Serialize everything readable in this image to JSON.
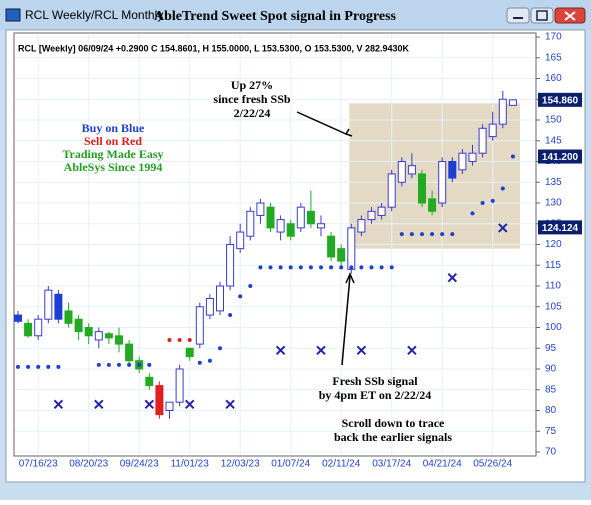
{
  "window": {
    "title": "RCL Weekly/RCL Monthly"
  },
  "chart_data": {
    "type": "candlestick",
    "title": "AbleTrend Sweet Spot signal in Progress",
    "header": "RCL [Weekly] 06/09/24 +0.2900 C 154.8601, H 155.0000, L 153.5300, O 153.5300, V 282.9430K",
    "categories": [
      null,
      null,
      "07/16/23",
      null,
      null,
      null,
      null,
      "08/20/23",
      null,
      null,
      null,
      null,
      "09/24/23",
      null,
      null,
      null,
      null,
      "11/01/23",
      null,
      null,
      null,
      null,
      "12/03/23",
      null,
      null,
      null,
      null,
      "01/07/24",
      null,
      null,
      null,
      null,
      "02/11/24",
      null,
      null,
      null,
      null,
      "03/17/24",
      null,
      null,
      null,
      null,
      "04/21/24",
      null,
      null,
      null,
      null,
      "05/26/24",
      null,
      null
    ],
    "open": [
      101.5,
      101,
      98,
      102,
      108,
      104,
      102,
      100,
      97,
      98.5,
      98,
      96,
      92,
      88,
      86,
      80,
      82,
      93,
      96,
      103,
      104,
      110,
      119,
      122,
      127,
      129,
      123,
      125,
      124,
      128,
      124,
      122,
      119,
      114,
      123,
      126,
      127,
      129,
      135,
      137,
      137,
      131,
      130,
      140,
      138,
      140,
      142,
      146,
      149,
      153.53
    ],
    "high": [
      104,
      102,
      103,
      110,
      109,
      106,
      103,
      101,
      100,
      99,
      100,
      97,
      93,
      89,
      87,
      82,
      91,
      95,
      106,
      108,
      111,
      122,
      125,
      129,
      131,
      130,
      127,
      126,
      130,
      133,
      127,
      123,
      120,
      125,
      127,
      129,
      130,
      138,
      141,
      142,
      138,
      133,
      141,
      141,
      143,
      144,
      149,
      152,
      157,
      155
    ],
    "low": [
      101,
      97.5,
      97,
      101,
      101,
      100,
      97,
      96,
      95,
      96,
      94,
      91,
      89,
      85,
      78,
      78,
      81,
      92,
      95,
      102,
      103,
      109,
      118,
      121,
      125,
      123,
      121,
      121,
      123,
      124,
      122,
      116,
      114,
      113,
      122,
      125,
      126,
      128,
      134,
      136,
      129,
      127,
      129,
      135,
      137,
      139,
      141,
      145,
      148,
      153.53
    ],
    "close": [
      103,
      98,
      102,
      109,
      102,
      101,
      99,
      98,
      99,
      97.5,
      96,
      92,
      90,
      86,
      79,
      82,
      90,
      95,
      105,
      107,
      110,
      120,
      123,
      128,
      130,
      124,
      126,
      122,
      129,
      125,
      125,
      117,
      116,
      124,
      126,
      128,
      129,
      137,
      140,
      139,
      130,
      128,
      140,
      136,
      142,
      142,
      148,
      149,
      155,
      154.86
    ],
    "colors": [
      "#1f3fcf",
      "#22aa22",
      "#ffffff",
      "#ffffff",
      "#1f3fcf",
      "#22aa22",
      "#22aa22",
      "#22aa22",
      "#ffffff",
      "#22aa22",
      "#22aa22",
      "#22aa22",
      "#22aa22",
      "#22aa22",
      "#e02020",
      "#ffffff",
      "#ffffff",
      "#22aa22",
      "#ffffff",
      "#ffffff",
      "#ffffff",
      "#ffffff",
      "#ffffff",
      "#ffffff",
      "#ffffff",
      "#22aa22",
      "#ffffff",
      "#22aa22",
      "#ffffff",
      "#22aa22",
      "#ffffff",
      "#22aa22",
      "#22aa22",
      "#ffffff",
      "#ffffff",
      "#ffffff",
      "#ffffff",
      "#ffffff",
      "#ffffff",
      "#ffffff",
      "#22aa22",
      "#22aa22",
      "#ffffff",
      "#1f3fcf",
      "#ffffff",
      "#ffffff",
      "#ffffff",
      "#ffffff",
      "#ffffff",
      "#ffffff"
    ],
    "stop_dots": {
      "color": "#1f3fcf",
      "x": [
        0,
        1,
        2,
        3,
        4,
        8,
        9,
        10,
        11,
        12,
        13,
        18,
        19,
        20,
        21,
        22,
        23,
        24,
        25,
        26,
        27,
        28,
        29,
        30,
        31,
        32,
        33,
        34,
        35,
        36,
        37,
        38,
        39,
        40,
        41,
        42,
        43,
        45,
        46,
        47,
        48,
        49
      ],
      "values": [
        90.5,
        90.5,
        90.5,
        90.5,
        90.5,
        91,
        91,
        91,
        91,
        91,
        91,
        91.5,
        92,
        95,
        103,
        107.5,
        110,
        114.5,
        114.5,
        114.5,
        114.5,
        114.5,
        114.5,
        114.5,
        114.5,
        114.5,
        114.5,
        114.5,
        114.5,
        114.5,
        114.5,
        122.5,
        122.5,
        122.5,
        122.5,
        122.5,
        122.5,
        127.5,
        130,
        130.5,
        133.5,
        141.2
      ]
    },
    "red_dots": {
      "color": "#e02020",
      "x": [
        15,
        16,
        17
      ],
      "values": [
        97,
        97,
        97
      ]
    },
    "x_marks": {
      "color": "#2222aa",
      "x": [
        4,
        8,
        13,
        17,
        21,
        26,
        30,
        34,
        39,
        43,
        48
      ],
      "values": [
        81.5,
        81.5,
        81.5,
        81.5,
        81.5,
        94.5,
        94.5,
        94.5,
        94.5,
        112,
        124
      ]
    },
    "ylim": [
      70,
      170
    ],
    "yticks": [
      70,
      75,
      80,
      85,
      90,
      95,
      100,
      105,
      110,
      115,
      120,
      125,
      130,
      135,
      140,
      145,
      150,
      155,
      160,
      165,
      170
    ],
    "grid": true,
    "price_labels": [
      {
        "value": 154.86,
        "label": "154.860"
      },
      {
        "value": 141.2,
        "label": "141.200"
      },
      {
        "value": 124.124,
        "label": "124.124"
      }
    ],
    "highlight": {
      "x": [
        32.8,
        49.7
      ],
      "y": [
        119,
        154
      ],
      "color": "#e3d9c4"
    },
    "legend_text": [
      {
        "text": "Buy on Blue",
        "color": "#1f3fcf"
      },
      {
        "text": "Sell on Red",
        "color": "#e02020"
      },
      {
        "text": "Trading Made Easy",
        "color": "#22a022"
      },
      {
        "text": "AbleSys Since 1994",
        "color": "#22a022"
      }
    ],
    "annotations": {
      "up": [
        "Up 27%",
        "since fresh SSb",
        "2/22/24"
      ],
      "signal": [
        "Fresh SSb signal",
        "by 4pm ET on 2/22/24"
      ],
      "scroll": [
        "Scroll down to trace",
        "back the earlier signals"
      ]
    }
  }
}
